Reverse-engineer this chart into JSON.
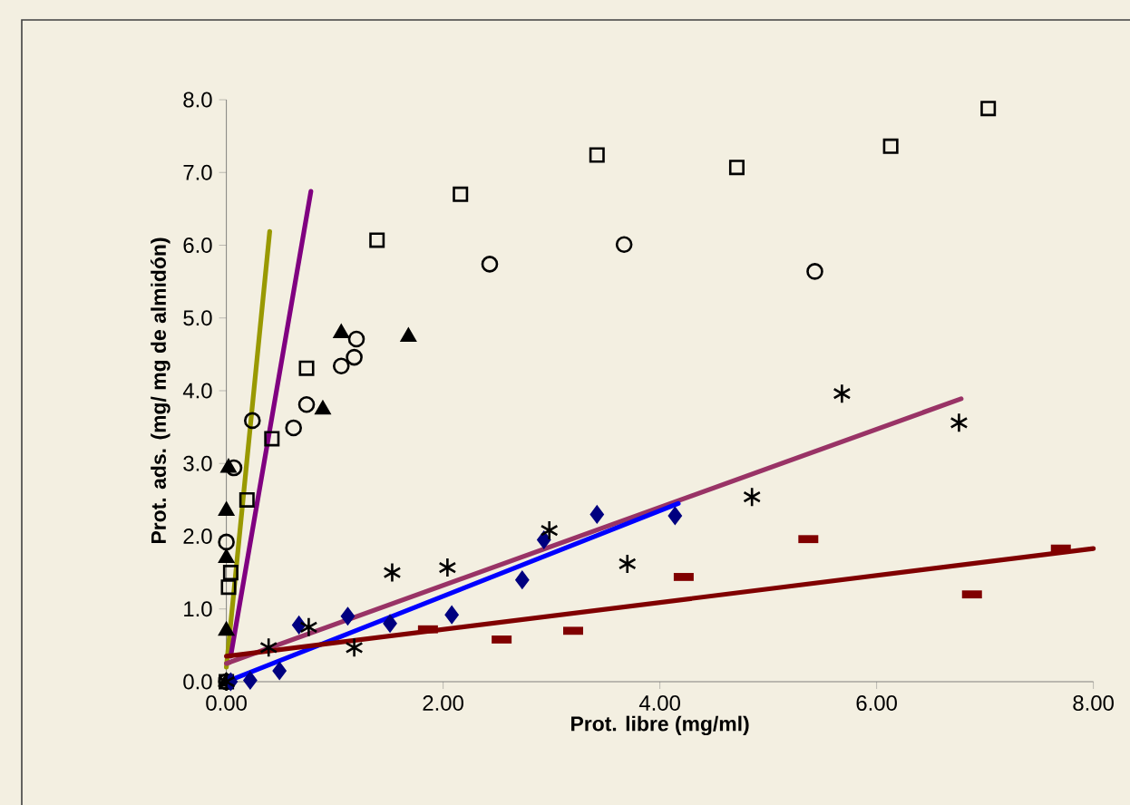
{
  "chart_data": {
    "type": "scatter",
    "xlabel": "Prot. libre (mg/ml)",
    "ylabel": "Prot. ads. (mg/ mg de almidón)",
    "xlim": [
      0,
      8
    ],
    "ylim": [
      0,
      8
    ],
    "xticks": [
      {
        "value": 0,
        "label": "0.00"
      },
      {
        "value": 2,
        "label": "2.00"
      },
      {
        "value": 4,
        "label": "4.00"
      },
      {
        "value": 6,
        "label": "6.00"
      },
      {
        "value": 8,
        "label": "8.00"
      }
    ],
    "yticks": [
      {
        "value": 0,
        "label": "0.0"
      },
      {
        "value": 1,
        "label": "1.0"
      },
      {
        "value": 2,
        "label": "2.0"
      },
      {
        "value": 3,
        "label": "3.0"
      },
      {
        "value": 4,
        "label": "4.0"
      },
      {
        "value": 5,
        "label": "5.0"
      },
      {
        "value": 6,
        "label": "6.0"
      },
      {
        "value": 7,
        "label": "7.0"
      },
      {
        "value": 8,
        "label": "8.0"
      }
    ],
    "grid": false,
    "series": [
      {
        "marker": "square",
        "color": "#000000",
        "x": [
          0,
          0.02,
          0.04,
          0.19,
          0.42,
          0.74,
          1.39,
          2.16,
          3.42,
          4.71,
          6.13,
          7.03
        ],
        "values": [
          0,
          1.3,
          1.5,
          2.5,
          3.34,
          4.31,
          6.07,
          6.7,
          7.24,
          7.07,
          7.36,
          7.88
        ]
      },
      {
        "marker": "circle",
        "color": "#000000",
        "x": [
          0,
          0,
          0.07,
          0.24,
          0.62,
          0.74,
          1.06,
          1.18,
          1.2,
          2.43,
          3.67,
          5.43
        ],
        "values": [
          0,
          1.92,
          2.94,
          3.59,
          3.49,
          3.81,
          4.34,
          4.46,
          4.71,
          5.74,
          6.01,
          5.64
        ]
      },
      {
        "marker": "triangle",
        "color": "#000000",
        "x": [
          0,
          0,
          0,
          0,
          0.02,
          0.89,
          1.06,
          1.68
        ],
        "values": [
          0,
          0.7,
          1.7,
          2.35,
          2.94,
          3.74,
          4.79,
          4.74
        ]
      },
      {
        "marker": "diamond",
        "color": "#000080",
        "x": [
          0.04,
          0.22,
          0.49,
          0.67,
          1.12,
          1.51,
          2.08,
          2.73,
          2.93,
          3.42,
          4.14
        ],
        "values": [
          0,
          0.02,
          0.15,
          0.78,
          0.9,
          0.8,
          0.92,
          1.4,
          1.95,
          2.3,
          2.28
        ]
      },
      {
        "marker": "cross",
        "color": "#000000",
        "x": [
          0,
          0.39,
          0.76,
          1.18,
          1.53,
          2.04,
          2.98,
          3.7,
          4.85,
          5.68,
          6.76
        ],
        "values": [
          0,
          0.47,
          0.75,
          0.47,
          1.5,
          1.57,
          2.08,
          1.62,
          2.54,
          3.96,
          3.56
        ]
      },
      {
        "color": "#800000",
        "x": [
          1.86,
          2.54,
          3.2,
          4.22,
          5.37,
          6.88,
          7.7
        ],
        "values": [
          0.72,
          0.58,
          0.7,
          1.44,
          1.96,
          1.2,
          1.83
        ]
      },
      {
        "type": "line",
        "color": "#999900",
        "x": [
          0,
          0.4
        ],
        "values": [
          0.2,
          6.19
        ]
      },
      {
        "type": "line",
        "color": "#800080",
        "x": [
          0.04,
          0.78
        ],
        "values": [
          0.35,
          6.74
        ]
      },
      {
        "type": "line",
        "color": "#993366",
        "x": [
          0,
          6.78
        ],
        "values": [
          0.25,
          3.89
        ]
      },
      {
        "type": "line",
        "color": "#0000ff",
        "x": [
          0,
          4.17
        ],
        "values": [
          0,
          2.45
        ]
      },
      {
        "type": "line",
        "color": "#800000",
        "x": [
          0,
          8
        ],
        "values": [
          0.35,
          1.83
        ]
      }
    ]
  }
}
